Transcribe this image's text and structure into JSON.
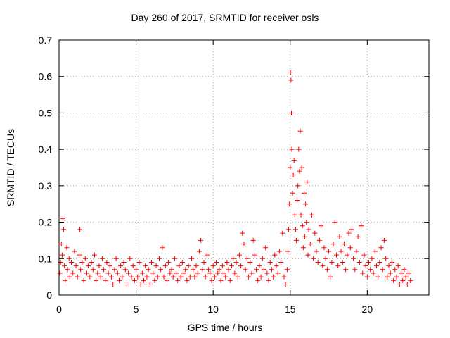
{
  "chart_data": {
    "type": "scatter",
    "title": "Day 260 of 2017, SRMTID for receiver osls",
    "xlabel": "GPS time / hours",
    "ylabel": "SRMTID / TECUs",
    "xlim": [
      0,
      24
    ],
    "ylim": [
      0,
      0.7
    ],
    "xticks": [
      0,
      5,
      10,
      15,
      20
    ],
    "yticks": [
      0,
      0.1,
      0.2,
      0.3,
      0.4,
      0.5,
      0.6,
      0.7
    ],
    "grid": true,
    "marker": "+",
    "color": "#ff0000",
    "series": [
      {
        "name": "SRMTID",
        "points": [
          [
            0.05,
            0.06
          ],
          [
            0.1,
            0.09
          ],
          [
            0.15,
            0.14
          ],
          [
            0.2,
            0.11
          ],
          [
            0.25,
            0.21
          ],
          [
            0.3,
            0.18
          ],
          [
            0.35,
            0.08
          ],
          [
            0.4,
            0.04
          ],
          [
            0.5,
            0.13
          ],
          [
            0.55,
            0.07
          ],
          [
            0.65,
            0.1
          ],
          [
            0.7,
            0.05
          ],
          [
            0.8,
            0.09
          ],
          [
            0.9,
            0.06
          ],
          [
            1.0,
            0.12
          ],
          [
            1.1,
            0.08
          ],
          [
            1.2,
            0.05
          ],
          [
            1.3,
            0.11
          ],
          [
            1.35,
            0.18
          ],
          [
            1.4,
            0.07
          ],
          [
            1.5,
            0.09
          ],
          [
            1.6,
            0.04
          ],
          [
            1.7,
            0.1
          ],
          [
            1.8,
            0.06
          ],
          [
            1.9,
            0.08
          ],
          [
            2.0,
            0.05
          ],
          [
            2.1,
            0.09
          ],
          [
            2.2,
            0.07
          ],
          [
            2.3,
            0.11
          ],
          [
            2.4,
            0.04
          ],
          [
            2.5,
            0.06
          ],
          [
            2.6,
            0.08
          ],
          [
            2.7,
            0.05
          ],
          [
            2.8,
            0.1
          ],
          [
            2.9,
            0.07
          ],
          [
            3.0,
            0.04
          ],
          [
            3.1,
            0.09
          ],
          [
            3.2,
            0.06
          ],
          [
            3.3,
            0.08
          ],
          [
            3.4,
            0.05
          ],
          [
            3.5,
            0.03
          ],
          [
            3.6,
            0.07
          ],
          [
            3.7,
            0.1
          ],
          [
            3.8,
            0.06
          ],
          [
            3.9,
            0.04
          ],
          [
            4.0,
            0.08
          ],
          [
            4.1,
            0.05
          ],
          [
            4.2,
            0.09
          ],
          [
            4.3,
            0.07
          ],
          [
            4.4,
            0.03
          ],
          [
            4.5,
            0.06
          ],
          [
            4.6,
            0.1
          ],
          [
            4.7,
            0.05
          ],
          [
            4.8,
            0.08
          ],
          [
            4.9,
            0.04
          ],
          [
            5.0,
            0.07
          ],
          [
            5.1,
            0.05
          ],
          [
            5.2,
            0.09
          ],
          [
            5.3,
            0.03
          ],
          [
            5.4,
            0.06
          ],
          [
            5.5,
            0.04
          ],
          [
            5.6,
            0.08
          ],
          [
            5.7,
            0.05
          ],
          [
            5.8,
            0.07
          ],
          [
            5.9,
            0.03
          ],
          [
            6.0,
            0.09
          ],
          [
            6.1,
            0.06
          ],
          [
            6.2,
            0.04
          ],
          [
            6.3,
            0.08
          ],
          [
            6.4,
            0.05
          ],
          [
            6.5,
            0.1
          ],
          [
            6.6,
            0.07
          ],
          [
            6.7,
            0.13
          ],
          [
            6.8,
            0.05
          ],
          [
            6.9,
            0.08
          ],
          [
            7.0,
            0.04
          ],
          [
            7.1,
            0.09
          ],
          [
            7.2,
            0.06
          ],
          [
            7.3,
            0.07
          ],
          [
            7.4,
            0.05
          ],
          [
            7.5,
            0.1
          ],
          [
            7.6,
            0.06
          ],
          [
            7.7,
            0.04
          ],
          [
            7.8,
            0.08
          ],
          [
            7.9,
            0.05
          ],
          [
            8.0,
            0.09
          ],
          [
            8.1,
            0.06
          ],
          [
            8.2,
            0.07
          ],
          [
            8.3,
            0.04
          ],
          [
            8.4,
            0.08
          ],
          [
            8.5,
            0.05
          ],
          [
            8.6,
            0.1
          ],
          [
            8.7,
            0.07
          ],
          [
            8.8,
            0.05
          ],
          [
            8.9,
            0.08
          ],
          [
            9.0,
            0.06
          ],
          [
            9.1,
            0.12
          ],
          [
            9.2,
            0.15
          ],
          [
            9.3,
            0.07
          ],
          [
            9.4,
            0.09
          ],
          [
            9.5,
            0.05
          ],
          [
            9.6,
            0.11
          ],
          [
            9.7,
            0.07
          ],
          [
            9.8,
            0.06
          ],
          [
            9.9,
            0.04
          ],
          [
            10.0,
            0.08
          ],
          [
            10.1,
            0.05
          ],
          [
            10.2,
            0.09
          ],
          [
            10.3,
            0.06
          ],
          [
            10.4,
            0.07
          ],
          [
            10.5,
            0.04
          ],
          [
            10.6,
            0.08
          ],
          [
            10.7,
            0.06
          ],
          [
            10.8,
            0.05
          ],
          [
            10.9,
            0.09
          ],
          [
            11.0,
            0.07
          ],
          [
            11.1,
            0.04
          ],
          [
            11.2,
            0.08
          ],
          [
            11.3,
            0.1
          ],
          [
            11.4,
            0.06
          ],
          [
            11.5,
            0.09
          ],
          [
            11.6,
            0.05
          ],
          [
            11.7,
            0.11
          ],
          [
            11.8,
            0.08
          ],
          [
            11.9,
            0.17
          ],
          [
            12.0,
            0.14
          ],
          [
            12.1,
            0.07
          ],
          [
            12.2,
            0.1
          ],
          [
            12.3,
            0.05
          ],
          [
            12.4,
            0.09
          ],
          [
            12.5,
            0.06
          ],
          [
            12.6,
            0.15
          ],
          [
            12.7,
            0.11
          ],
          [
            12.8,
            0.07
          ],
          [
            12.9,
            0.04
          ],
          [
            13.0,
            0.08
          ],
          [
            13.1,
            0.05
          ],
          [
            13.2,
            0.1
          ],
          [
            13.3,
            0.07
          ],
          [
            13.4,
            0.13
          ],
          [
            13.5,
            0.06
          ],
          [
            13.6,
            0.04
          ],
          [
            13.7,
            0.09
          ],
          [
            13.8,
            0.07
          ],
          [
            13.9,
            0.05
          ],
          [
            14.0,
            0.11
          ],
          [
            14.1,
            0.08
          ],
          [
            14.2,
            0.06
          ],
          [
            14.3,
            0.12
          ],
          [
            14.4,
            0.09
          ],
          [
            14.5,
            0.17
          ],
          [
            14.6,
            0.05
          ],
          [
            14.7,
            0.03
          ],
          [
            14.8,
            0.07
          ],
          [
            14.85,
            0.12
          ],
          [
            14.9,
            0.18
          ],
          [
            14.95,
            0.25
          ],
          [
            15.0,
            0.35
          ],
          [
            15.02,
            0.61
          ],
          [
            15.05,
            0.59
          ],
          [
            15.08,
            0.5
          ],
          [
            15.1,
            0.4
          ],
          [
            15.15,
            0.28
          ],
          [
            15.2,
            0.33
          ],
          [
            15.25,
            0.37
          ],
          [
            15.3,
            0.22
          ],
          [
            15.35,
            0.18
          ],
          [
            15.4,
            0.15
          ],
          [
            15.45,
            0.26
          ],
          [
            15.5,
            0.3
          ],
          [
            15.55,
            0.4
          ],
          [
            15.6,
            0.34
          ],
          [
            15.65,
            0.45
          ],
          [
            15.7,
            0.22
          ],
          [
            15.75,
            0.35
          ],
          [
            15.8,
            0.19
          ],
          [
            15.85,
            0.13
          ],
          [
            15.9,
            0.28
          ],
          [
            15.95,
            0.16
          ],
          [
            16.0,
            0.25
          ],
          [
            16.05,
            0.2
          ],
          [
            16.1,
            0.31
          ],
          [
            16.15,
            0.11
          ],
          [
            16.2,
            0.18
          ],
          [
            16.3,
            0.14
          ],
          [
            16.4,
            0.22
          ],
          [
            16.5,
            0.1
          ],
          [
            16.6,
            0.17
          ],
          [
            16.7,
            0.12
          ],
          [
            16.8,
            0.09
          ],
          [
            16.9,
            0.15
          ],
          [
            17.0,
            0.19
          ],
          [
            17.1,
            0.08
          ],
          [
            17.2,
            0.13
          ],
          [
            17.3,
            0.1
          ],
          [
            17.4,
            0.07
          ],
          [
            17.5,
            0.12
          ],
          [
            17.6,
            0.05
          ],
          [
            17.7,
            0.09
          ],
          [
            17.8,
            0.14
          ],
          [
            17.9,
            0.2
          ],
          [
            18.0,
            0.11
          ],
          [
            18.1,
            0.08
          ],
          [
            18.2,
            0.16
          ],
          [
            18.3,
            0.12
          ],
          [
            18.4,
            0.09
          ],
          [
            18.5,
            0.14
          ],
          [
            18.6,
            0.07
          ],
          [
            18.7,
            0.11
          ],
          [
            18.8,
            0.17
          ],
          [
            18.9,
            0.13
          ],
          [
            19.0,
            0.18
          ],
          [
            19.1,
            0.1
          ],
          [
            19.2,
            0.07
          ],
          [
            19.3,
            0.12
          ],
          [
            19.4,
            0.16
          ],
          [
            19.5,
            0.09
          ],
          [
            19.6,
            0.19
          ],
          [
            19.7,
            0.06
          ],
          [
            19.8,
            0.11
          ],
          [
            19.9,
            0.08
          ],
          [
            20.0,
            0.05
          ],
          [
            20.1,
            0.09
          ],
          [
            20.2,
            0.07
          ],
          [
            20.3,
            0.1
          ],
          [
            20.4,
            0.06
          ],
          [
            20.5,
            0.12
          ],
          [
            20.6,
            0.08
          ],
          [
            20.7,
            0.05
          ],
          [
            20.8,
            0.09
          ],
          [
            20.9,
            0.13
          ],
          [
            21.0,
            0.07
          ],
          [
            21.1,
            0.15
          ],
          [
            21.2,
            0.1
          ],
          [
            21.3,
            0.05
          ],
          [
            21.4,
            0.08
          ],
          [
            21.5,
            0.06
          ],
          [
            21.6,
            0.09
          ],
          [
            21.7,
            0.04
          ],
          [
            21.8,
            0.07
          ],
          [
            21.9,
            0.05
          ],
          [
            22.0,
            0.08
          ],
          [
            22.1,
            0.03
          ],
          [
            22.2,
            0.06
          ],
          [
            22.3,
            0.04
          ],
          [
            22.4,
            0.07
          ],
          [
            22.5,
            0.05
          ],
          [
            22.6,
            0.03
          ],
          [
            22.7,
            0.06
          ],
          [
            22.8,
            0.04
          ]
        ]
      }
    ]
  }
}
